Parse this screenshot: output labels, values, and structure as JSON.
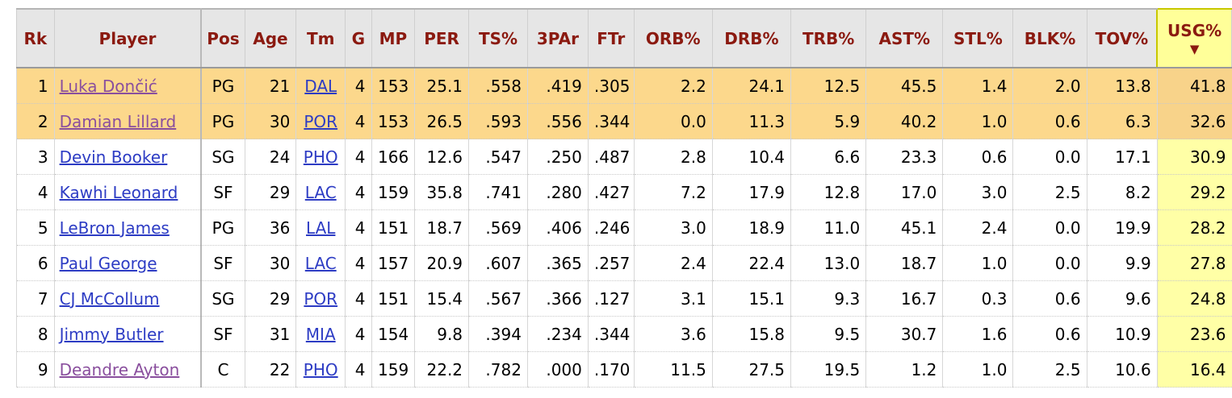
{
  "columns": [
    "Rk",
    "Player",
    "Pos",
    "Age",
    "Tm",
    "G",
    "MP",
    "PER",
    "TS%",
    "3PAr",
    "FTr",
    "ORB%",
    "DRB%",
    "TRB%",
    "AST%",
    "STL%",
    "BLK%",
    "TOV%",
    "USG%"
  ],
  "sort_indicator": "▼",
  "rows": [
    {
      "rk": "1",
      "player": "Luka Dončić",
      "pos": "PG",
      "age": "21",
      "tm": "DAL",
      "g": "4",
      "mp": "153",
      "per": "25.1",
      "ts": ".558",
      "par": ".419",
      "ftr": ".305",
      "orb": "2.2",
      "drb": "24.1",
      "trb": "12.5",
      "ast": "45.5",
      "stl": "1.4",
      "blk": "2.0",
      "tov": "13.8",
      "usg": "41.8"
    },
    {
      "rk": "2",
      "player": "Damian Lillard",
      "pos": "PG",
      "age": "30",
      "tm": "POR",
      "g": "4",
      "mp": "153",
      "per": "26.5",
      "ts": ".593",
      "par": ".556",
      "ftr": ".344",
      "orb": "0.0",
      "drb": "11.3",
      "trb": "5.9",
      "ast": "40.2",
      "stl": "1.0",
      "blk": "0.6",
      "tov": "6.3",
      "usg": "32.6"
    },
    {
      "rk": "3",
      "player": "Devin Booker",
      "pos": "SG",
      "age": "24",
      "tm": "PHO",
      "g": "4",
      "mp": "166",
      "per": "12.6",
      "ts": ".547",
      "par": ".250",
      "ftr": ".487",
      "orb": "2.8",
      "drb": "10.4",
      "trb": "6.6",
      "ast": "23.3",
      "stl": "0.6",
      "blk": "0.0",
      "tov": "17.1",
      "usg": "30.9"
    },
    {
      "rk": "4",
      "player": "Kawhi Leonard",
      "pos": "SF",
      "age": "29",
      "tm": "LAC",
      "g": "4",
      "mp": "159",
      "per": "35.8",
      "ts": ".741",
      "par": ".280",
      "ftr": ".427",
      "orb": "7.2",
      "drb": "17.9",
      "trb": "12.8",
      "ast": "17.0",
      "stl": "3.0",
      "blk": "2.5",
      "tov": "8.2",
      "usg": "29.2"
    },
    {
      "rk": "5",
      "player": "LeBron James",
      "pos": "PG",
      "age": "36",
      "tm": "LAL",
      "g": "4",
      "mp": "151",
      "per": "18.7",
      "ts": ".569",
      "par": ".406",
      "ftr": ".246",
      "orb": "3.0",
      "drb": "18.9",
      "trb": "11.0",
      "ast": "45.1",
      "stl": "2.4",
      "blk": "0.0",
      "tov": "19.9",
      "usg": "28.2"
    },
    {
      "rk": "6",
      "player": "Paul George",
      "pos": "SF",
      "age": "30",
      "tm": "LAC",
      "g": "4",
      "mp": "157",
      "per": "20.9",
      "ts": ".607",
      "par": ".365",
      "ftr": ".257",
      "orb": "2.4",
      "drb": "22.4",
      "trb": "13.0",
      "ast": "18.7",
      "stl": "1.0",
      "blk": "0.0",
      "tov": "9.9",
      "usg": "27.8"
    },
    {
      "rk": "7",
      "player": "CJ McCollum",
      "pos": "SG",
      "age": "29",
      "tm": "POR",
      "g": "4",
      "mp": "151",
      "per": "15.4",
      "ts": ".567",
      "par": ".366",
      "ftr": ".127",
      "orb": "3.1",
      "drb": "15.1",
      "trb": "9.3",
      "ast": "16.7",
      "stl": "0.3",
      "blk": "0.6",
      "tov": "9.6",
      "usg": "24.8"
    },
    {
      "rk": "8",
      "player": "Jimmy Butler",
      "pos": "SF",
      "age": "31",
      "tm": "MIA",
      "g": "4",
      "mp": "154",
      "per": "9.8",
      "ts": ".394",
      "par": ".234",
      "ftr": ".344",
      "orb": "3.6",
      "drb": "15.8",
      "trb": "9.5",
      "ast": "30.7",
      "stl": "1.6",
      "blk": "0.6",
      "tov": "10.9",
      "usg": "23.6"
    },
    {
      "rk": "9",
      "player": "Deandre Ayton",
      "pos": "C",
      "age": "22",
      "tm": "PHO",
      "g": "4",
      "mp": "159",
      "per": "22.2",
      "ts": ".782",
      "par": ".000",
      "ftr": ".170",
      "orb": "11.5",
      "drb": "27.5",
      "trb": "19.5",
      "ast": "1.2",
      "stl": "1.0",
      "blk": "2.5",
      "tov": "10.6",
      "usg": "16.4"
    }
  ],
  "colors": {
    "header_text": "#8b1a10",
    "highlight_row": "#fcd88c",
    "sorted_column": "#ffffa6",
    "link": "#2d3cc4",
    "visited_link": "#8a4f9e"
  }
}
